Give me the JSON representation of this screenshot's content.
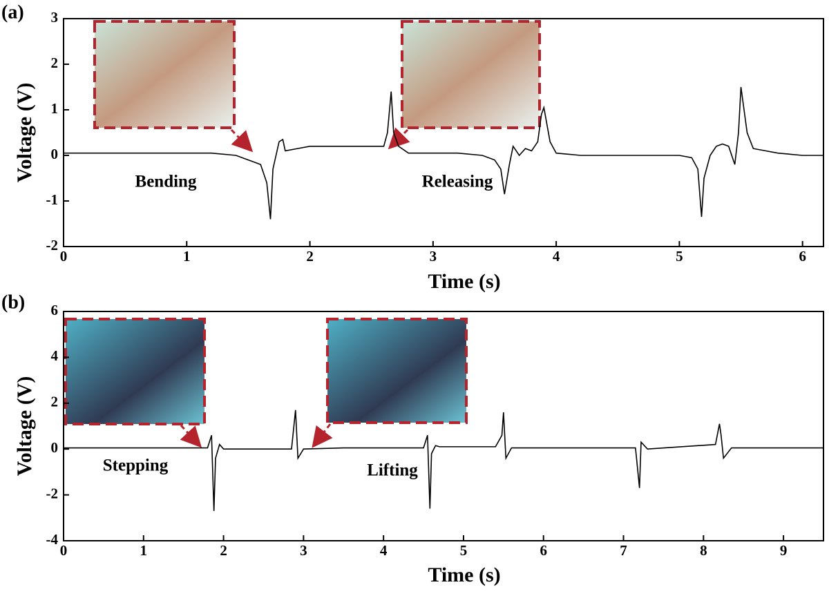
{
  "chart_data": [
    {
      "type": "line",
      "label": "(a)",
      "x_label": "Time (s)",
      "y_label": "Voltage (V)",
      "color": "#000000",
      "annotations": [
        "Bending",
        "Releasing"
      ],
      "xlim": [
        0,
        6.17
      ],
      "xticks": [
        0,
        1,
        2,
        3,
        4,
        5,
        6
      ],
      "ylim": [
        -2,
        3
      ],
      "yticks": [
        -2,
        -1,
        0,
        1,
        2,
        3
      ],
      "x": [
        0,
        0.2,
        0.4,
        0.6,
        0.8,
        1.0,
        1.2,
        1.4,
        1.5,
        1.55,
        1.6,
        1.65,
        1.68,
        1.7,
        1.75,
        1.78,
        1.8,
        1.9,
        2.0,
        2.2,
        2.4,
        2.6,
        2.63,
        2.66,
        2.68,
        2.72,
        2.8,
        3.0,
        3.2,
        3.4,
        3.5,
        3.55,
        3.58,
        3.62,
        3.65,
        3.7,
        3.75,
        3.8,
        3.85,
        3.88,
        3.9,
        3.95,
        4.0,
        4.2,
        4.5,
        4.8,
        5.0,
        5.1,
        5.15,
        5.18,
        5.2,
        5.25,
        5.3,
        5.35,
        5.4,
        5.45,
        5.48,
        5.5,
        5.55,
        5.6,
        5.8,
        6.0,
        6.17
      ],
      "values": [
        0.05,
        0.05,
        0.05,
        0.05,
        0.05,
        0.05,
        0.05,
        0.0,
        -0.1,
        -0.15,
        -0.2,
        -0.6,
        -1.4,
        -0.3,
        0.3,
        0.35,
        0.1,
        0.15,
        0.2,
        0.2,
        0.2,
        0.2,
        0.5,
        1.4,
        0.5,
        0.2,
        0.05,
        0.05,
        0.05,
        0.0,
        -0.1,
        -0.3,
        -0.85,
        -0.2,
        0.2,
        0.0,
        0.15,
        0.1,
        0.3,
        0.9,
        1.05,
        0.3,
        0.05,
        0.0,
        0.0,
        0.0,
        0.0,
        -0.05,
        -0.3,
        -1.35,
        -0.5,
        0.0,
        0.2,
        0.25,
        0.2,
        -0.2,
        0.5,
        1.5,
        0.5,
        0.15,
        0.05,
        0.0,
        0.0
      ]
    },
    {
      "type": "line",
      "label": "(b)",
      "x_label": "Time (s)",
      "y_label": "Voltage (V)",
      "color": "#000000",
      "annotations": [
        "Stepping",
        "Lifting"
      ],
      "xlim": [
        0,
        9.5
      ],
      "xticks": [
        0,
        1,
        2,
        3,
        4,
        5,
        6,
        7,
        8,
        9
      ],
      "ylim": [
        -4,
        6
      ],
      "yticks": [
        -4,
        -2,
        0,
        2,
        4,
        6
      ],
      "x": [
        0,
        1,
        1.8,
        1.85,
        1.88,
        1.9,
        1.95,
        2.0,
        2.5,
        2.85,
        2.9,
        2.93,
        3.0,
        3.5,
        4.5,
        4.55,
        4.58,
        4.6,
        4.65,
        4.7,
        5.4,
        5.48,
        5.5,
        5.53,
        5.6,
        6.5,
        7.15,
        7.2,
        7.22,
        7.3,
        8.15,
        8.2,
        8.22,
        8.25,
        8.35,
        9.0,
        9.5
      ],
      "values": [
        0.05,
        0.05,
        0.05,
        0.6,
        -2.7,
        -0.4,
        0.2,
        0.0,
        0.0,
        0.0,
        1.7,
        -0.4,
        0.0,
        0.05,
        0.05,
        0.6,
        -2.6,
        -0.2,
        0.15,
        0.1,
        0.1,
        0.6,
        1.6,
        -0.4,
        0.05,
        0.05,
        0.05,
        -1.7,
        0.3,
        0.0,
        0.2,
        1.1,
        0.6,
        -0.4,
        0.05,
        0.05,
        0.05
      ]
    }
  ]
}
